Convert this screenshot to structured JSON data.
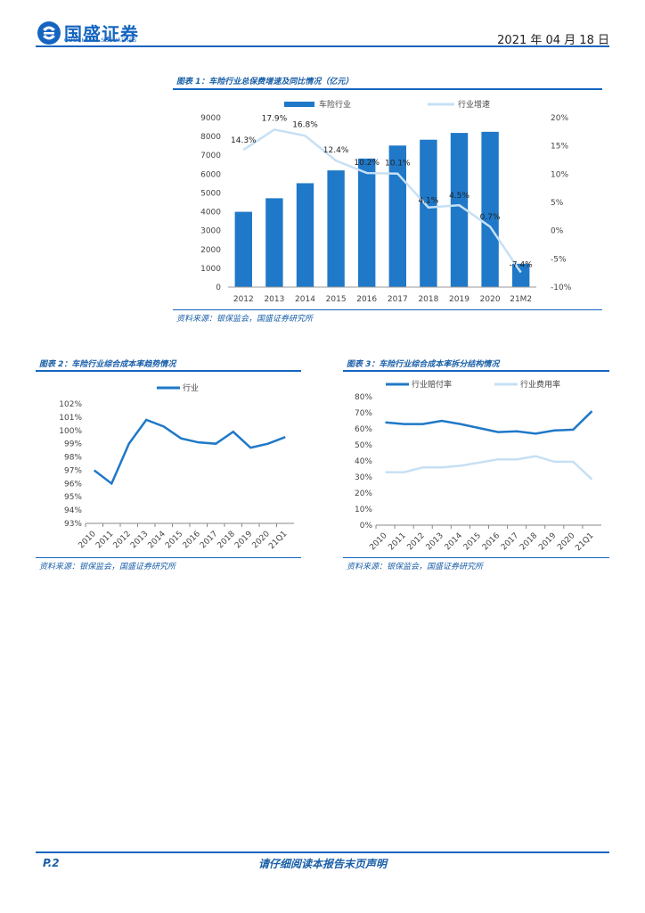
{
  "header": {
    "brand": "国盛证券",
    "brand_sub": "GUOSHENG SECURITIES",
    "date": "2021 年 04 月 18 日"
  },
  "colors": {
    "primary": "#1f78c8",
    "light": "#c6e0f5",
    "text_blue": "#1a5fa8"
  },
  "fig1": {
    "title": "图表 1：车险行业总保费增速及同比情况（亿元）",
    "source": "资料来源：银保监会，国盛证券研究所"
  },
  "fig2": {
    "title": "图表 2：车险行业综合成本率趋势情况",
    "source": "资料来源：银保监会，国盛证券研究所"
  },
  "fig3": {
    "title": "图表 3：车险行业综合成本率拆分结构情况",
    "source": "资料来源：银保监会，国盛证券研究所"
  },
  "chart_data": [
    {
      "type": "bar+line",
      "title": "车险行业总保费增速及同比情况（亿元）",
      "categories": [
        "2012",
        "2013",
        "2014",
        "2015",
        "2016",
        "2017",
        "2018",
        "2019",
        "2020",
        "21M2"
      ],
      "series": [
        {
          "name": "车险行业",
          "type": "bar",
          "axis": "left",
          "values": [
            4000,
            4720,
            5520,
            6200,
            6830,
            7520,
            7830,
            8190,
            8250,
            1240
          ]
        },
        {
          "name": "行业增速",
          "type": "line",
          "axis": "right",
          "values": [
            14.3,
            17.9,
            16.8,
            12.4,
            10.2,
            10.1,
            4.1,
            4.5,
            0.7,
            -7.4
          ],
          "labels": [
            "14.3%",
            "17.9%",
            "16.8%",
            "12.4%",
            "10.2%",
            "10.1%",
            "4.1%",
            "4.5%",
            "0.7%",
            "-7.4%"
          ]
        }
      ],
      "ylim_left": [
        0,
        9000
      ],
      "yticks_left": [
        "0",
        "1000",
        "2000",
        "3000",
        "4000",
        "5000",
        "6000",
        "7000",
        "8000",
        "9000"
      ],
      "ylim_right": [
        -10,
        20
      ],
      "yticks_right": [
        "-10%",
        "-5%",
        "0%",
        "5%",
        "10%",
        "15%",
        "20%"
      ],
      "legend": "top"
    },
    {
      "type": "line",
      "title": "车险行业综合成本率趋势情况",
      "categories": [
        "2010",
        "2011",
        "2012",
        "2013",
        "2014",
        "2015",
        "2016",
        "2017",
        "2018",
        "2019",
        "2020",
        "21Q1"
      ],
      "series": [
        {
          "name": "行业",
          "values": [
            97.0,
            96.0,
            99.0,
            100.8,
            100.3,
            99.4,
            99.1,
            99.0,
            99.9,
            98.7,
            99.0,
            99.5
          ]
        }
      ],
      "ylim": [
        93,
        102
      ],
      "yticks": [
        "93%",
        "94%",
        "95%",
        "96%",
        "97%",
        "98%",
        "99%",
        "100%",
        "101%",
        "102%"
      ],
      "legend": "top"
    },
    {
      "type": "line",
      "title": "车险行业综合成本率拆分结构情况",
      "categories": [
        "2010",
        "2011",
        "2012",
        "2013",
        "2014",
        "2015",
        "2016",
        "2017",
        "2018",
        "2019",
        "2020",
        "21Q1"
      ],
      "series": [
        {
          "name": "行业赔付率",
          "values": [
            64,
            63,
            63,
            65,
            63,
            60.5,
            58,
            58.5,
            57,
            59,
            59.5,
            71
          ]
        },
        {
          "name": "行业费用率",
          "values": [
            33,
            33,
            36,
            36,
            37,
            39,
            41,
            41,
            43,
            39.5,
            39.5,
            28.5
          ]
        }
      ],
      "ylim": [
        0,
        80
      ],
      "yticks": [
        "0%",
        "10%",
        "20%",
        "30%",
        "40%",
        "50%",
        "60%",
        "70%",
        "80%"
      ],
      "legend": "top"
    }
  ],
  "footer": {
    "page": "P.2",
    "disclaimer": "请仔细阅读本报告末页声明"
  }
}
